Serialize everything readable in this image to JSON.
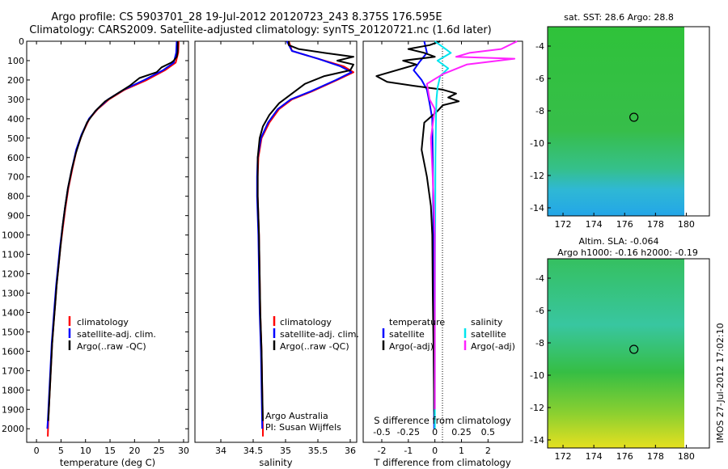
{
  "header": {
    "line1": "Argo profile: CS 5903701_28 19-Jul-2012 20120723_243 8.375S 176.595E",
    "line2": "Climatology: CARS2009. Satellite-adjusted climatology: synTS_20120721.nc (1.6d later)"
  },
  "colors": {
    "clim": "#ff0000",
    "sat": "#0000ff",
    "argo": "#000000",
    "sat_sal": "#00e5ee",
    "argo_sal": "#ff22ff"
  },
  "chart_data": [
    {
      "type": "line",
      "id": "temperature",
      "xlabel": "temperature (deg C)",
      "xlim": [
        -2,
        31
      ],
      "xticks": [
        0,
        5,
        10,
        15,
        20,
        25,
        30
      ],
      "ylim": [
        2070,
        0
      ],
      "yticks": [
        0,
        100,
        200,
        300,
        400,
        500,
        600,
        700,
        800,
        900,
        1000,
        1100,
        1200,
        1300,
        1400,
        1500,
        1600,
        1700,
        1800,
        1900,
        2000
      ],
      "legend": [
        "climatology",
        "satellite-adj. clim.",
        "Argo(..raw -QC)"
      ],
      "series": [
        {
          "name": "climatology",
          "color": "#ff0000",
          "points": [
            [
              29,
              0
            ],
            [
              28.9,
              60
            ],
            [
              28.4,
              110
            ],
            [
              26.2,
              150
            ],
            [
              22.5,
              200
            ],
            [
              18,
              250
            ],
            [
              14.8,
              300
            ],
            [
              12.5,
              350
            ],
            [
              10.8,
              400
            ],
            [
              9.3,
              480
            ],
            [
              8.2,
              560
            ],
            [
              7.3,
              660
            ],
            [
              6.5,
              760
            ],
            [
              5.9,
              860
            ],
            [
              5.4,
              960
            ],
            [
              4.9,
              1060
            ],
            [
              4.5,
              1160
            ],
            [
              4.1,
              1260
            ],
            [
              3.8,
              1360
            ],
            [
              3.5,
              1460
            ],
            [
              3.2,
              1560
            ],
            [
              3,
              1660
            ],
            [
              2.8,
              1760
            ],
            [
              2.6,
              1860
            ],
            [
              2.4,
              1960
            ],
            [
              2.3,
              2040
            ]
          ]
        },
        {
          "name": "satellite-adj. clim.",
          "color": "#0000ff",
          "points": [
            [
              28.6,
              0
            ],
            [
              28.5,
              60
            ],
            [
              28,
              110
            ],
            [
              25.8,
              150
            ],
            [
              22,
              200
            ],
            [
              17.8,
              250
            ],
            [
              14.6,
              300
            ],
            [
              12.4,
              350
            ],
            [
              10.7,
              400
            ],
            [
              9.2,
              480
            ],
            [
              8.1,
              560
            ],
            [
              7.2,
              660
            ],
            [
              6.4,
              760
            ],
            [
              5.8,
              860
            ],
            [
              5.3,
              960
            ],
            [
              4.8,
              1060
            ],
            [
              4.4,
              1160
            ],
            [
              4.0,
              1260
            ],
            [
              3.7,
              1360
            ],
            [
              3.4,
              1460
            ],
            [
              3.1,
              1560
            ],
            [
              2.9,
              1660
            ],
            [
              2.7,
              1760
            ],
            [
              2.5,
              1860
            ],
            [
              2.3,
              1960
            ],
            [
              2.2,
              2000
            ]
          ]
        },
        {
          "name": "Argo(..raw -QC)",
          "color": "#000000",
          "points": [
            [
              28.8,
              0
            ],
            [
              28.8,
              50
            ],
            [
              28.6,
              80
            ],
            [
              28,
              100
            ],
            [
              27.5,
              110
            ],
            [
              25.5,
              135
            ],
            [
              24.5,
              160
            ],
            [
              21,
              190
            ],
            [
              19,
              230
            ],
            [
              16.5,
              270
            ],
            [
              14,
              310
            ],
            [
              12,
              360
            ],
            [
              10.3,
              420
            ],
            [
              9,
              500
            ],
            [
              8,
              580
            ],
            [
              7.2,
              660
            ],
            [
              6.4,
              760
            ],
            [
              5.8,
              860
            ],
            [
              5.3,
              960
            ],
            [
              4.9,
              1060
            ],
            [
              4.5,
              1160
            ],
            [
              4.1,
              1260
            ],
            [
              3.8,
              1360
            ],
            [
              3.5,
              1460
            ],
            [
              3.2,
              1560
            ],
            [
              3,
              1660
            ],
            [
              2.8,
              1760
            ],
            [
              2.6,
              1860
            ],
            [
              2.4,
              1960
            ]
          ]
        }
      ]
    },
    {
      "type": "line",
      "id": "salinity",
      "xlabel": "salinity",
      "xlim": [
        33.6,
        36.1
      ],
      "xticks": [
        34,
        34.5,
        35,
        35.5,
        36
      ],
      "legend": [
        "climatology",
        "satellite-adj. clim.",
        "Argo(..raw -QC)"
      ],
      "annotation": [
        "Argo Australia",
        "PI: Susan Wijffels"
      ],
      "series": [
        {
          "name": "climatology",
          "color": "#ff0000",
          "points": [
            [
              35.05,
              0
            ],
            [
              35.1,
              50
            ],
            [
              35.5,
              90
            ],
            [
              35.9,
              130
            ],
            [
              36.05,
              160
            ],
            [
              35.8,
              200
            ],
            [
              35.4,
              260
            ],
            [
              35.1,
              300
            ],
            [
              34.9,
              350
            ],
            [
              34.75,
              420
            ],
            [
              34.63,
              500
            ],
            [
              34.58,
              600
            ],
            [
              34.57,
              700
            ],
            [
              34.57,
              800
            ],
            [
              34.58,
              900
            ],
            [
              34.59,
              1000
            ],
            [
              34.6,
              1200
            ],
            [
              34.61,
              1400
            ],
            [
              34.63,
              1600
            ],
            [
              34.64,
              1800
            ],
            [
              34.65,
              2000
            ],
            [
              34.65,
              2040
            ]
          ]
        },
        {
          "name": "satellite-adj. clim.",
          "color": "#0000ff",
          "points": [
            [
              35.02,
              0
            ],
            [
              35.1,
              50
            ],
            [
              35.5,
              90
            ],
            [
              35.85,
              130
            ],
            [
              36.02,
              160
            ],
            [
              35.78,
              200
            ],
            [
              35.38,
              260
            ],
            [
              35.08,
              300
            ],
            [
              34.88,
              350
            ],
            [
              34.73,
              420
            ],
            [
              34.62,
              500
            ],
            [
              34.57,
              600
            ],
            [
              34.56,
              700
            ],
            [
              34.56,
              800
            ],
            [
              34.57,
              900
            ],
            [
              34.58,
              1000
            ],
            [
              34.59,
              1200
            ],
            [
              34.6,
              1400
            ],
            [
              34.62,
              1600
            ],
            [
              34.63,
              1800
            ],
            [
              34.64,
              2000
            ]
          ]
        },
        {
          "name": "Argo(..raw -QC)",
          "color": "#000000",
          "points": [
            [
              35.05,
              0
            ],
            [
              35.05,
              20
            ],
            [
              35.2,
              40
            ],
            [
              35.6,
              60
            ],
            [
              36.05,
              80
            ],
            [
              35.8,
              100
            ],
            [
              36.05,
              120
            ],
            [
              36,
              150
            ],
            [
              35.6,
              180
            ],
            [
              35.3,
              220
            ],
            [
              35.1,
              270
            ],
            [
              34.9,
              320
            ],
            [
              34.75,
              380
            ],
            [
              34.65,
              440
            ],
            [
              34.6,
              500
            ],
            [
              34.57,
              600
            ],
            [
              34.57,
              700
            ],
            [
              34.57,
              800
            ],
            [
              34.58,
              900
            ],
            [
              34.59,
              1000
            ],
            [
              34.6,
              1200
            ],
            [
              34.61,
              1400
            ],
            [
              34.63,
              1600
            ],
            [
              34.64,
              1800
            ],
            [
              34.65,
              1960
            ]
          ]
        }
      ]
    },
    {
      "type": "line",
      "id": "difference",
      "xlabel": "T difference from climatology",
      "xlabel_top": "S difference from climatology",
      "xlim": [
        -2.7,
        3.3
      ],
      "xticks": [
        -2,
        -1,
        0,
        1,
        2
      ],
      "xticks_top": [
        "-0.5",
        "-0.25",
        "0",
        "0.25",
        "0.5"
      ],
      "xticks_top_pos": [
        -2,
        -1,
        0,
        1,
        2
      ],
      "legend_headers": [
        "temperature",
        "salinity"
      ],
      "legend": [
        "satellite",
        "Argo(-adj)",
        "satellite",
        "Argo(-adj)"
      ],
      "series": [
        {
          "name": "satellite",
          "group": "temperature",
          "color": "#0000ff",
          "points": [
            [
              -0.4,
              0
            ],
            [
              -0.3,
              60
            ],
            [
              -0.6,
              110
            ],
            [
              -0.8,
              150
            ],
            [
              -0.5,
              200
            ],
            [
              -0.3,
              250
            ],
            [
              -0.2,
              320
            ],
            [
              -0.1,
              400
            ],
            [
              -0.08,
              600
            ],
            [
              -0.05,
              1000
            ],
            [
              -0.04,
              1500
            ],
            [
              -0.03,
              2000
            ]
          ]
        },
        {
          "name": "Argo(-adj)",
          "group": "temperature",
          "color": "#000000",
          "points": [
            [
              0.2,
              0
            ],
            [
              -0.2,
              20
            ],
            [
              -1,
              40
            ],
            [
              -0.4,
              60
            ],
            [
              0,
              80
            ],
            [
              -1.2,
              100
            ],
            [
              -0.7,
              120
            ],
            [
              -2.2,
              180
            ],
            [
              -1.8,
              210
            ],
            [
              -0.8,
              230
            ],
            [
              0.3,
              250
            ],
            [
              0.8,
              270
            ],
            [
              0.5,
              290
            ],
            [
              0.9,
              310
            ],
            [
              0.3,
              330
            ],
            [
              0.1,
              360
            ],
            [
              -0.4,
              420
            ],
            [
              -0.5,
              560
            ],
            [
              -0.3,
              700
            ],
            [
              -0.15,
              850
            ],
            [
              -0.1,
              1000
            ],
            [
              -0.08,
              1300
            ],
            [
              -0.05,
              1600
            ],
            [
              -0.03,
              1900
            ],
            [
              0,
              1960
            ]
          ]
        },
        {
          "name": "satellite",
          "group": "salinity",
          "color": "#00e5ee",
          "points": [
            [
              0,
              0
            ],
            [
              0.3,
              30
            ],
            [
              0.6,
              60
            ],
            [
              0.1,
              100
            ],
            [
              0.5,
              140
            ],
            [
              0.2,
              180
            ],
            [
              0.1,
              240
            ],
            [
              0.06,
              300
            ],
            [
              0.04,
              400
            ],
            [
              0.02,
              600
            ],
            [
              0.01,
              1000
            ],
            [
              0,
              1500
            ],
            [
              0,
              2000
            ]
          ]
        },
        {
          "name": "Argo(-adj)",
          "group": "salinity",
          "color": "#ff22ff",
          "points": [
            [
              3.1,
              0
            ],
            [
              2.5,
              40
            ],
            [
              1.3,
              60
            ],
            [
              0.8,
              80
            ],
            [
              3,
              90
            ],
            [
              1.2,
              120
            ],
            [
              0.3,
              170
            ],
            [
              -0.3,
              220
            ],
            [
              -0.2,
              300
            ],
            [
              0,
              350
            ],
            [
              -0.15,
              500
            ],
            [
              -0.1,
              650
            ],
            [
              -0.05,
              800
            ],
            [
              0,
              1000
            ],
            [
              0,
              1300
            ],
            [
              0,
              1600
            ],
            [
              0,
              1900
            ]
          ]
        }
      ]
    },
    {
      "type": "heatmap",
      "id": "sst",
      "title": "sat. SST: 28.6  Argo: 28.8",
      "xlim": [
        171,
        181.5
      ],
      "ylim": [
        -14.5,
        -2.8
      ],
      "xticks": [
        172,
        174,
        176,
        178,
        180
      ],
      "yticks": [
        -4,
        -6,
        -8,
        -10,
        -12,
        -14
      ],
      "marker": [
        176.6,
        -8.4
      ]
    },
    {
      "type": "heatmap",
      "id": "sla",
      "title": "Altim. SLA: -0.064",
      "subtitle": "Argo h1000: -0.16  h2000: -0.19",
      "xlim": [
        171,
        181.5
      ],
      "ylim": [
        -14.5,
        -2.8
      ],
      "xticks": [
        172,
        174,
        176,
        178,
        180
      ],
      "yticks": [
        -4,
        -6,
        -8,
        -10,
        -12,
        -14
      ],
      "marker": [
        176.6,
        -8.4
      ]
    }
  ],
  "footer": {
    "stamp": "IMOS 27-Jul-2012 17:02:10"
  }
}
